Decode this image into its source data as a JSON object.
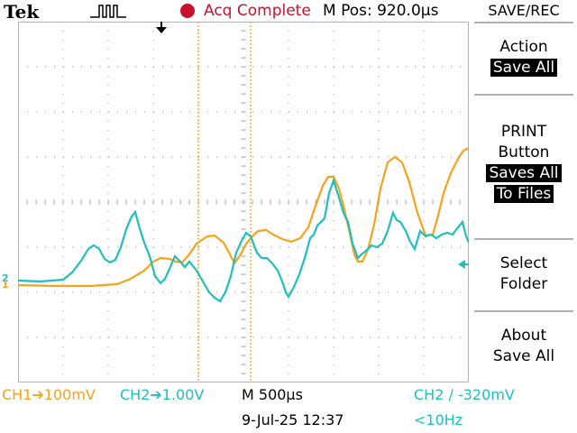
{
  "header": {
    "brand": "Tek",
    "acq_status": "Acq Complete",
    "m_pos": "M Pos: 920.0µs"
  },
  "menu": {
    "title": "SAVE/REC",
    "action_line1": "Action",
    "action_value": "Save All",
    "print_line1": "PRINT",
    "print_line2": "Button",
    "print_value_line1": "Saves All",
    "print_value_line2": "To Files",
    "select_line1": "Select",
    "select_line2": "Folder",
    "about_line1": "About",
    "about_line2": "Save All"
  },
  "markers": {
    "ch1": "1",
    "ch2": "2"
  },
  "status": {
    "ch1_scale": "CH1➔100mV",
    "ch2_scale": "CH2➔1.00V",
    "timebase": "M 500µs",
    "trigger": "CH2 ∕ -320mV",
    "date": "9-Jul-25 12:37",
    "freq": "<10Hz"
  },
  "colors": {
    "ch1": "#f5a31a",
    "ch2": "#1ebfbf",
    "grid": "#b4b4b4",
    "acq": "#c8102e"
  }
}
